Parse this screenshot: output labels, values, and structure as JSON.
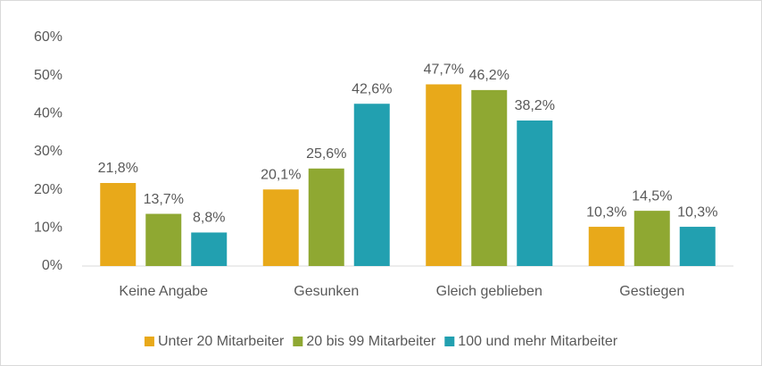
{
  "chart_data": {
    "type": "bar",
    "categories": [
      "Keine Angabe",
      "Gesunken",
      "Gleich geblieben",
      "Gestiegen"
    ],
    "series": [
      {
        "name": "Unter 20 Mitarbeiter",
        "color": "#e8a91a",
        "values": [
          21.8,
          20.1,
          47.7,
          10.3
        ],
        "value_labels": [
          "21,8%",
          "20,1%",
          "47,7%",
          "10,3%"
        ]
      },
      {
        "name": "20 bis 99 Mitarbeiter",
        "color": "#8fa832",
        "values": [
          13.7,
          25.6,
          46.2,
          14.5
        ],
        "value_labels": [
          "13,7%",
          "25,6%",
          "46,2%",
          "14,5%"
        ]
      },
      {
        "name": "100 und mehr Mitarbeiter",
        "color": "#22a0b0",
        "values": [
          8.8,
          42.6,
          38.2,
          10.3
        ],
        "value_labels": [
          "8,8%",
          "42,6%",
          "38,2%",
          "10,3%"
        ]
      }
    ],
    "ylim": [
      0,
      60
    ],
    "yticks": [
      {
        "value": 0,
        "label": "0%"
      },
      {
        "value": 10,
        "label": "10%"
      },
      {
        "value": 20,
        "label": "20%"
      },
      {
        "value": 30,
        "label": "30%"
      },
      {
        "value": 40,
        "label": "40%"
      },
      {
        "value": 50,
        "label": "50%"
      },
      {
        "value": 60,
        "label": "60%"
      }
    ],
    "grid": false,
    "legend": "bottom"
  }
}
